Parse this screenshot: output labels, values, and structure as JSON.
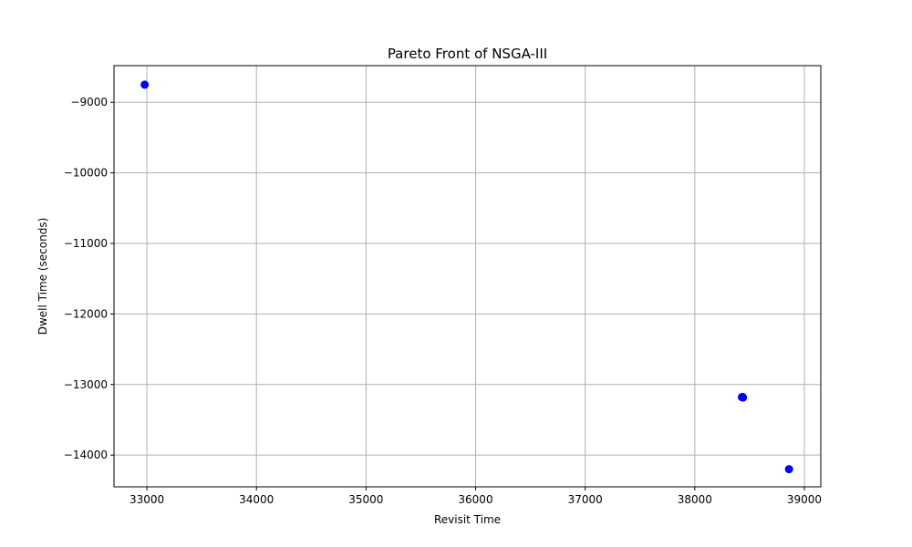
{
  "chart_data": {
    "type": "scatter",
    "title": "Pareto Front of NSGA-III",
    "xlabel": "Revisit Time",
    "ylabel": "Dwell Time (seconds)",
    "xlim": [
      32700,
      39150
    ],
    "ylim": [
      -14450,
      -8480
    ],
    "x_ticks": [
      33000,
      34000,
      35000,
      36000,
      37000,
      38000,
      39000
    ],
    "x_tick_labels": [
      "33000",
      "34000",
      "35000",
      "36000",
      "37000",
      "38000",
      "39000"
    ],
    "y_ticks": [
      -9000,
      -10000,
      -11000,
      -12000,
      -13000,
      -14000
    ],
    "y_tick_labels": [
      "−9000",
      "−10000",
      "−11000",
      "−12000",
      "−13000",
      "−14000"
    ],
    "grid": true,
    "marker_color": "#0000ff",
    "points": [
      {
        "x": 32980,
        "y": -8750
      },
      {
        "x": 38430,
        "y": -13180
      },
      {
        "x": 38435,
        "y": -13175
      },
      {
        "x": 38440,
        "y": -13185
      },
      {
        "x": 38860,
        "y": -14200
      }
    ]
  }
}
